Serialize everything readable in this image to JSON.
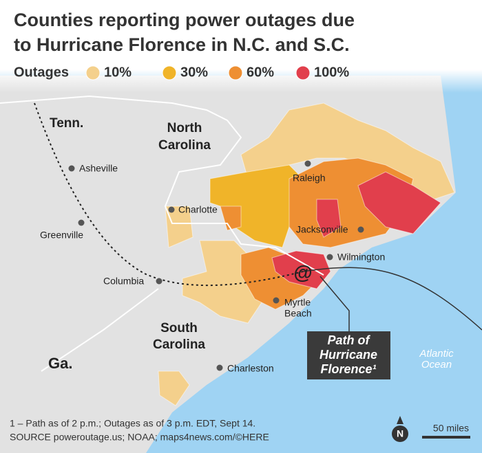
{
  "header": {
    "title_lines": [
      "Counties reporting power outages due",
      "to Hurricane Florence in N.C. and S.C."
    ]
  },
  "legend": {
    "label": "Outages",
    "items": [
      {
        "label": "10%",
        "color": "#f4d08c"
      },
      {
        "label": "30%",
        "color": "#f0b429"
      },
      {
        "label": "60%",
        "color": "#ee8f33"
      },
      {
        "label": "100%",
        "color": "#e13f4c"
      }
    ]
  },
  "map": {
    "states": {
      "tennessee": "Tenn.",
      "north_carolina": [
        "North",
        "Carolina"
      ],
      "south_carolina": [
        "South",
        "Carolina"
      ],
      "georgia": "Ga."
    },
    "cities": [
      "Asheville",
      "Charlotte",
      "Greenville",
      "Columbia",
      "Raleigh",
      "Jacksonville",
      "Wilmington",
      [
        "Myrtle",
        "Beach"
      ],
      "Charleston"
    ],
    "ocean": [
      "Atlantic",
      "Ocean"
    ],
    "callout": [
      "Path of",
      "Hurricane",
      "Florence¹"
    ]
  },
  "footer": {
    "note": "1 – Path as of 2 p.m.; Outages as of 3 p.m. EDT, Sept 14.",
    "source": "SOURCE poweroutage.us; NOAA; maps4news.com/©HERE",
    "compass": "N",
    "scale": "50 miles"
  }
}
